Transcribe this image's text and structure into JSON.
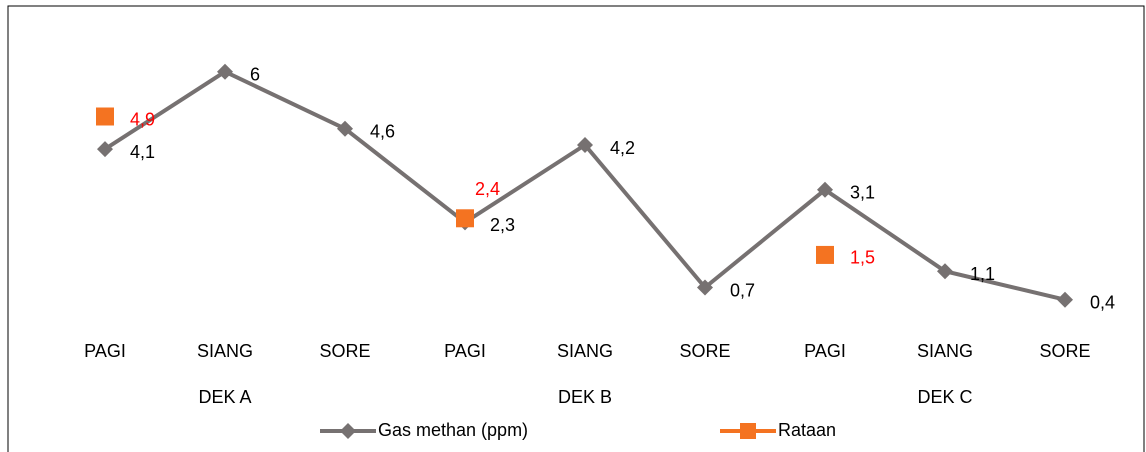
{
  "chart_data": {
    "type": "line",
    "categories": [
      "PAGI",
      "SIANG",
      "SORE",
      "PAGI",
      "SIANG",
      "SORE",
      "PAGI",
      "SIANG",
      "SORE"
    ],
    "groups": [
      "DEK A",
      "DEK B",
      "DEK C"
    ],
    "ylim": [
      0,
      7
    ],
    "legend": "bottom",
    "series": [
      {
        "name": "Gas methan (ppm)",
        "color": "#767171",
        "label_color": "#000000",
        "marker": "diamond",
        "values": [
          4.1,
          6,
          4.6,
          2.3,
          4.2,
          0.7,
          3.1,
          1.1,
          0.4
        ],
        "value_labels": [
          "4,1",
          "6",
          "4,6",
          "2,3",
          "4,2",
          "0,7",
          "3,1",
          "1,1",
          "0,4"
        ]
      },
      {
        "name": "Rataan",
        "color": "#f47321",
        "label_color": "#ff0000",
        "marker": "square",
        "values": [
          4.9,
          null,
          null,
          2.4,
          null,
          null,
          1.5,
          null,
          null
        ],
        "value_labels": [
          "4,9",
          null,
          null,
          "2,4",
          null,
          null,
          "1,5",
          null,
          null
        ]
      }
    ]
  }
}
